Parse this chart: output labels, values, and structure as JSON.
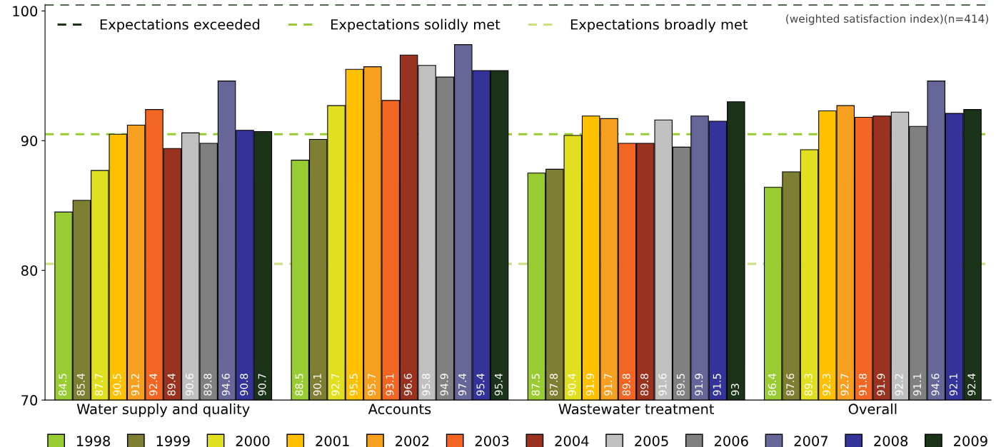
{
  "chart_data": {
    "type": "bar",
    "categories": [
      "Water supply and quality",
      "Accounts",
      "Wastewater treatment",
      "Overall"
    ],
    "series": [
      {
        "name": "1998",
        "color": "#99cc33",
        "values": [
          84.5,
          88.5,
          87.5,
          86.4
        ]
      },
      {
        "name": "1999",
        "color": "#7f7f33",
        "values": [
          85.4,
          90.1,
          87.8,
          87.6
        ]
      },
      {
        "name": "2000",
        "color": "#e0e020",
        "values": [
          87.7,
          92.7,
          90.4,
          89.3
        ]
      },
      {
        "name": "2001",
        "color": "#ffc000",
        "values": [
          90.5,
          95.5,
          91.9,
          92.3
        ]
      },
      {
        "name": "2002",
        "color": "#f7a020",
        "values": [
          91.2,
          95.7,
          91.7,
          92.7
        ]
      },
      {
        "name": "2003",
        "color": "#f26522",
        "values": [
          92.4,
          93.1,
          89.8,
          91.8
        ]
      },
      {
        "name": "2004",
        "color": "#99331f",
        "values": [
          89.4,
          96.6,
          89.8,
          91.9
        ]
      },
      {
        "name": "2005",
        "color": "#c0c0c0",
        "values": [
          90.6,
          95.8,
          91.6,
          92.2
        ]
      },
      {
        "name": "2006",
        "color": "#808080",
        "values": [
          89.8,
          94.9,
          89.5,
          91.1
        ]
      },
      {
        "name": "2007",
        "color": "#666699",
        "values": [
          94.6,
          97.4,
          91.9,
          94.6
        ]
      },
      {
        "name": "2008",
        "color": "#333399",
        "values": [
          90.8,
          95.4,
          91.5,
          92.1
        ]
      },
      {
        "name": "2009",
        "color": "#1a3319",
        "values": [
          90.7,
          95.4,
          93,
          92.4
        ]
      }
    ],
    "ylim": [
      70,
      100.5
    ],
    "yticks": [
      70,
      80,
      90,
      100
    ],
    "ref_lines": [
      {
        "axis": "y",
        "value": 100.5,
        "label": "Expectations exceeded",
        "color": "#1a3319",
        "line_style": "dashed"
      },
      {
        "axis": "y",
        "value": 90.5,
        "label": "Expectations solidly met",
        "color": "#99cc33",
        "line_style": "dashed"
      },
      {
        "axis": "y",
        "value": 80.5,
        "label": "Expectations broadly met",
        "color": "#cce080",
        "line_style": "dashed"
      }
    ],
    "annotations": [
      "(weighted satisfaction index)(n=414)"
    ],
    "data_labels": true,
    "legend": "bottom",
    "grid": false
  }
}
